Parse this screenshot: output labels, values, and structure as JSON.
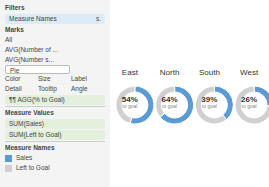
{
  "chart_data": {
    "type": "pie",
    "categories": [
      "East",
      "North",
      "South",
      "West"
    ],
    "series": [
      {
        "name": "Sales",
        "color": "#5B9BD5",
        "values": [
          54,
          64,
          39,
          26
        ],
        "value_labels": [
          "54%",
          "64%",
          "39%",
          "26%"
        ]
      },
      {
        "name": "Left to Goal",
        "color": "#D0D0D0",
        "values": [
          46,
          36,
          61,
          74
        ]
      }
    ],
    "subtitle": "to goal",
    "legend": "left",
    "annotations": [
      "Filters",
      "Measure Names",
      "s.",
      "Marks",
      "All",
      "AVG(Number of ...",
      "AVG(Number s...",
      "Pie",
      "Color",
      "Size",
      "Label",
      "Detail",
      "Tooltip",
      "Angle",
      "¶¶ AGG(% to Goal)",
      "Measure Values",
      "SUM(Sales)",
      "SUM(Left to Goal)",
      "Measure Names"
    ]
  }
}
